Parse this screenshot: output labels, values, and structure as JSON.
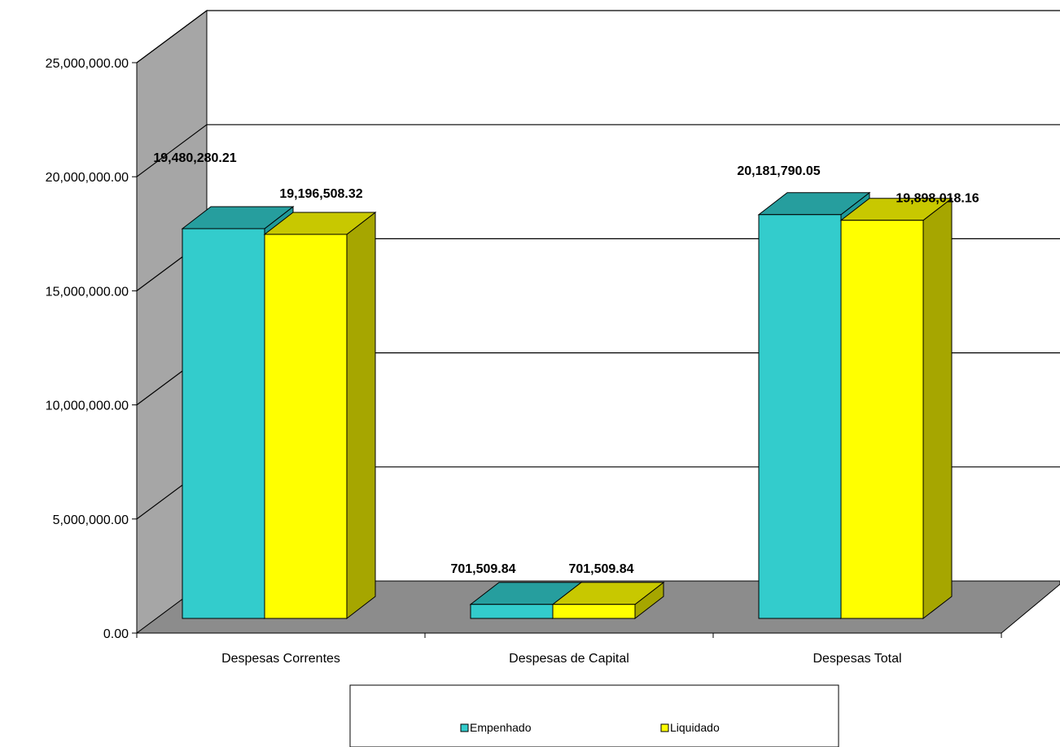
{
  "chart_data": {
    "type": "bar",
    "categories": [
      "Despesas Correntes",
      "Despesas de Capital",
      "Despesas Total"
    ],
    "series": [
      {
        "name": "Empenhado",
        "values": [
          19480280.21,
          701509.84,
          20181790.05
        ],
        "labels": [
          "19,480,280.21",
          "701,509.84",
          "20,181,790.05"
        ],
        "color": "#33CCCC"
      },
      {
        "name": "Liquidado",
        "values": [
          19196508.32,
          701509.84,
          19898018.16
        ],
        "labels": [
          "19,196,508.32",
          "701,509.84",
          "19,898,018.16"
        ],
        "color": "#FFFF00"
      }
    ],
    "yticks": [
      "0.00",
      "5,000,000.00",
      "10,000,000.00",
      "15,000,000.00",
      "20,000,000.00",
      "25,000,000.00"
    ],
    "ylim": [
      0,
      25000000
    ],
    "grid": true,
    "legend_position": "bottom",
    "wall_color": "#A6A6A6",
    "floor_color": "#8C8C8C"
  }
}
